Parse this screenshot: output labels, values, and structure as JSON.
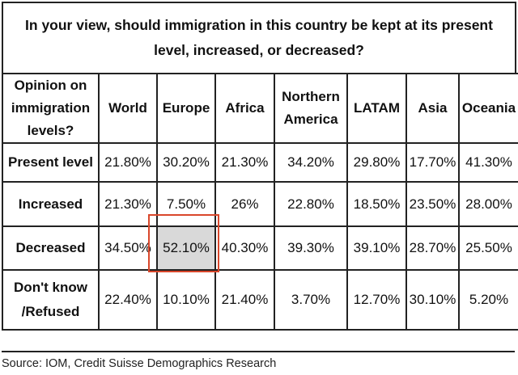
{
  "chart_data": {
    "type": "table",
    "title": "In your view, should immigration in this country be kept at its present level, increased, or decreased?",
    "corner_header": "Opinion on immigration levels?",
    "columns": [
      "World",
      "Europe",
      "Africa",
      "Northern America",
      "LATAM",
      "Asia",
      "Oceania"
    ],
    "rows": [
      {
        "label": "Present level",
        "values": [
          "21.80%",
          "30.20%",
          "21.30%",
          "34.20%",
          "29.80%",
          "17.70%",
          "41.30%"
        ]
      },
      {
        "label": "Increased",
        "values": [
          "21.30%",
          "7.50%",
          "26%",
          "22.80%",
          "18.50%",
          "23.50%",
          "28.00%"
        ]
      },
      {
        "label": "Decreased",
        "values": [
          "34.50%",
          "52.10%",
          "40.30%",
          "39.30%",
          "39.10%",
          "28.70%",
          "25.50%"
        ]
      },
      {
        "label": "Don't know /Refused",
        "values": [
          "22.40%",
          "10.10%",
          "21.40%",
          "3.70%",
          "12.70%",
          "30.10%",
          "5.20%"
        ]
      }
    ],
    "highlight": {
      "row": "Decreased",
      "column": "Europe",
      "fill_color": "#d9d9d9",
      "outline_color": "#d9472b"
    }
  },
  "source": "Source: IOM, Credit Suisse Demographics Research"
}
